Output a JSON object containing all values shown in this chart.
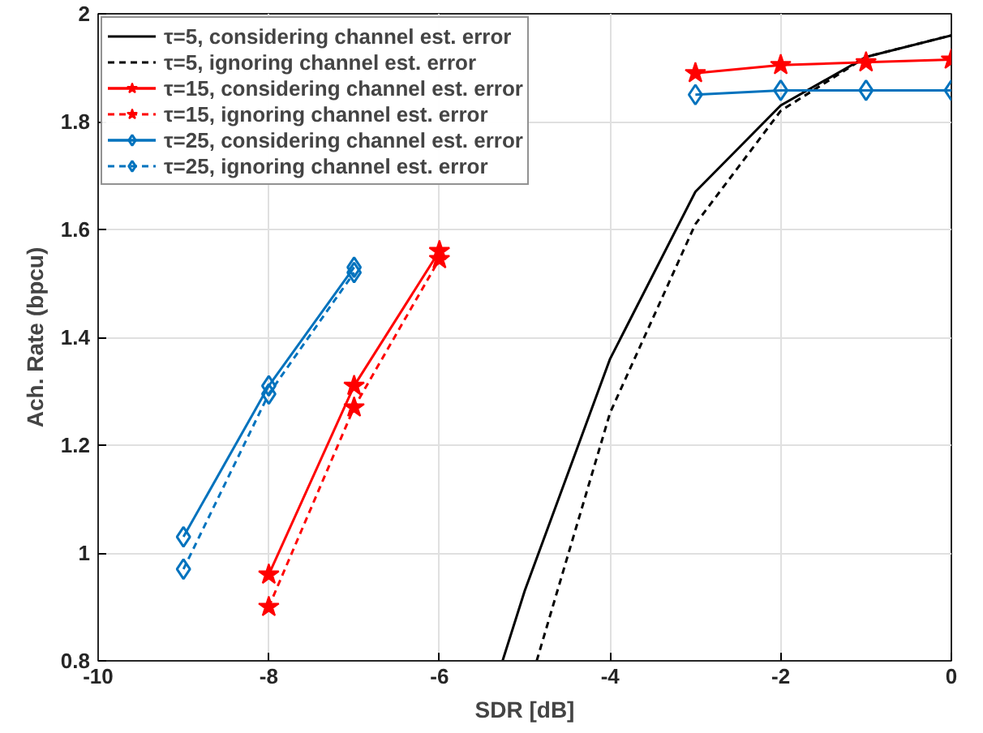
{
  "chart_data": {
    "type": "line",
    "xlabel": "SDR [dB]",
    "ylabel": "Ach. Rate (bpcu)",
    "xlim": [
      -10,
      0
    ],
    "ylim": [
      0.8,
      2
    ],
    "xticks": [
      -10,
      -8,
      -6,
      -4,
      -2,
      0
    ],
    "yticks": [
      0.8,
      1,
      1.2,
      1.4,
      1.6,
      1.8,
      2
    ],
    "grid": true,
    "legend": "top left",
    "series": [
      {
        "name": "τ=5, considering channel est. error",
        "color": "#000000",
        "marker": "none",
        "line_style": "solid",
        "x": [
          -5.26,
          -5,
          -4,
          -3,
          -2,
          -1,
          0
        ],
        "values": [
          0.8,
          0.93,
          1.36,
          1.67,
          1.83,
          1.92,
          1.96
        ]
      },
      {
        "name": "τ=5, ignoring channel est. error",
        "color": "#000000",
        "marker": "none",
        "line_style": "dashed",
        "x": [
          -4.86,
          -4,
          -3,
          -2,
          -1,
          0
        ],
        "values": [
          0.8,
          1.26,
          1.61,
          1.82,
          1.92,
          1.96
        ]
      },
      {
        "name": "τ=15, considering channel est. error",
        "color": "#ff0000",
        "marker": "star",
        "line_style": "solid",
        "x": [
          -8,
          -7,
          -6,
          -5,
          -4,
          -3,
          -2,
          -1,
          0
        ],
        "values": [
          0.96,
          1.31,
          1.56,
          null,
          null,
          1.89,
          1.905,
          1.91,
          1.915
        ]
      },
      {
        "name": "τ=15, ignoring channel est. error",
        "color": "#fe0000",
        "marker": "star",
        "line_style": "dashed",
        "x": [
          -8,
          -7,
          -6
        ],
        "values": [
          0.9,
          1.27,
          1.545
        ]
      },
      {
        "name": "τ=25, considering channel est. error",
        "color": "#0072bd",
        "marker": "diamond",
        "line_style": "solid",
        "x": [
          -9,
          -8,
          -7,
          -6,
          -5,
          -4,
          -3,
          -2,
          -1,
          0
        ],
        "values": [
          1.03,
          1.31,
          1.53,
          null,
          null,
          null,
          1.85,
          1.858,
          1.858,
          1.858
        ]
      },
      {
        "name": "τ=25, ignoring channel est. error",
        "color": "#0073be",
        "marker": "diamond",
        "line_style": "dashed",
        "x": [
          -9,
          -8,
          -7
        ],
        "values": [
          0.97,
          1.295,
          1.52
        ]
      }
    ]
  }
}
